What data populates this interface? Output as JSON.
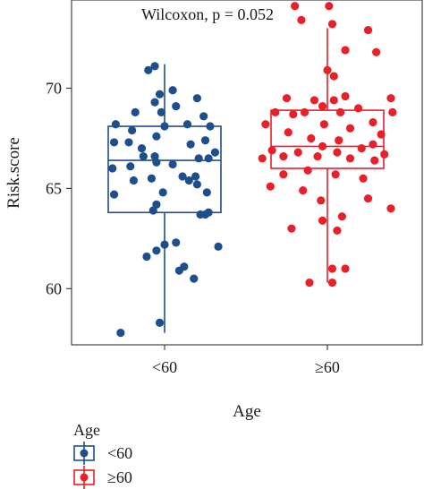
{
  "chart_data": {
    "type": "box",
    "title": "",
    "annotation": "Wilcoxon, p = 0.052",
    "xlabel": "Age",
    "ylabel": "Risk.score",
    "categories": [
      "<60",
      "≥60"
    ],
    "ylim": [
      57.2,
      74.4
    ],
    "yticks": [
      60,
      65,
      70
    ],
    "grid": false,
    "legend": {
      "title": "Age",
      "position": "bottom-left"
    },
    "series": [
      {
        "name": "<60",
        "color": "#1f4e8c",
        "box": {
          "min": 57.8,
          "q1": 63.8,
          "median": 66.4,
          "q3": 68.1,
          "max": 71.2
        },
        "points": [
          {
            "jitter": -0.06,
            "y": 71.1
          },
          {
            "jitter": -0.1,
            "y": 70.9
          },
          {
            "jitter": 0.05,
            "y": 69.9
          },
          {
            "jitter": -0.03,
            "y": 69.7
          },
          {
            "jitter": 0.2,
            "y": 69.5
          },
          {
            "jitter": -0.06,
            "y": 69.3
          },
          {
            "jitter": 0.07,
            "y": 69.1
          },
          {
            "jitter": -0.18,
            "y": 68.8
          },
          {
            "jitter": -0.02,
            "y": 68.8
          },
          {
            "jitter": 0.24,
            "y": 68.6
          },
          {
            "jitter": -0.3,
            "y": 68.2
          },
          {
            "jitter": 0.0,
            "y": 68.1
          },
          {
            "jitter": 0.14,
            "y": 68.2
          },
          {
            "jitter": 0.28,
            "y": 68.1
          },
          {
            "jitter": -0.2,
            "y": 67.9
          },
          {
            "jitter": -0.05,
            "y": 67.6
          },
          {
            "jitter": 0.25,
            "y": 67.4
          },
          {
            "jitter": -0.31,
            "y": 67.3
          },
          {
            "jitter": -0.22,
            "y": 67.3
          },
          {
            "jitter": 0.16,
            "y": 67.2
          },
          {
            "jitter": -0.14,
            "y": 67.0
          },
          {
            "jitter": 0.31,
            "y": 66.8
          },
          {
            "jitter": -0.13,
            "y": 66.6
          },
          {
            "jitter": -0.06,
            "y": 66.6
          },
          {
            "jitter": 0.21,
            "y": 66.5
          },
          {
            "jitter": 0.27,
            "y": 66.5
          },
          {
            "jitter": -0.05,
            "y": 66.3
          },
          {
            "jitter": 0.05,
            "y": 66.2
          },
          {
            "jitter": -0.21,
            "y": 66.1
          },
          {
            "jitter": -0.32,
            "y": 66.0
          },
          {
            "jitter": 0.11,
            "y": 65.6
          },
          {
            "jitter": 0.19,
            "y": 65.6
          },
          {
            "jitter": -0.08,
            "y": 65.5
          },
          {
            "jitter": 0.15,
            "y": 65.4
          },
          {
            "jitter": -0.19,
            "y": 65.4
          },
          {
            "jitter": 0.2,
            "y": 65.2
          },
          {
            "jitter": -0.01,
            "y": 64.8
          },
          {
            "jitter": 0.26,
            "y": 64.8
          },
          {
            "jitter": -0.31,
            "y": 64.7
          },
          {
            "jitter": -0.05,
            "y": 64.2
          },
          {
            "jitter": -0.07,
            "y": 63.9
          },
          {
            "jitter": 0.22,
            "y": 63.7
          },
          {
            "jitter": 0.27,
            "y": 63.8
          },
          {
            "jitter": 0.25,
            "y": 63.7
          },
          {
            "jitter": 0.07,
            "y": 62.3
          },
          {
            "jitter": 0.0,
            "y": 62.2
          },
          {
            "jitter": 0.33,
            "y": 62.1
          },
          {
            "jitter": -0.05,
            "y": 61.9
          },
          {
            "jitter": -0.11,
            "y": 61.6
          },
          {
            "jitter": 0.12,
            "y": 61.1
          },
          {
            "jitter": 0.09,
            "y": 60.9
          },
          {
            "jitter": 0.18,
            "y": 60.5
          },
          {
            "jitter": -0.03,
            "y": 58.3
          },
          {
            "jitter": -0.27,
            "y": 57.8
          }
        ]
      },
      {
        "name": "≥60",
        "color": "#e8202a",
        "box": {
          "min": 60.3,
          "q1": 66.0,
          "median": 67.1,
          "q3": 68.9,
          "max": 73.0
        },
        "points": [
          {
            "jitter": -0.2,
            "y": 74.1
          },
          {
            "jitter": 0.01,
            "y": 74.1
          },
          {
            "jitter": -0.16,
            "y": 73.4
          },
          {
            "jitter": 0.03,
            "y": 73.2
          },
          {
            "jitter": 0.25,
            "y": 72.9
          },
          {
            "jitter": 0.11,
            "y": 71.9
          },
          {
            "jitter": 0.3,
            "y": 71.8
          },
          {
            "jitter": 0.0,
            "y": 70.9
          },
          {
            "jitter": 0.04,
            "y": 70.6
          },
          {
            "jitter": 0.11,
            "y": 69.6
          },
          {
            "jitter": -0.25,
            "y": 69.5
          },
          {
            "jitter": 0.39,
            "y": 69.5
          },
          {
            "jitter": -0.08,
            "y": 69.4
          },
          {
            "jitter": 0.04,
            "y": 69.4
          },
          {
            "jitter": -0.03,
            "y": 69.1
          },
          {
            "jitter": 0.19,
            "y": 69.0
          },
          {
            "jitter": -0.32,
            "y": 68.8
          },
          {
            "jitter": -0.14,
            "y": 68.8
          },
          {
            "jitter": 0.08,
            "y": 68.8
          },
          {
            "jitter": 0.4,
            "y": 68.8
          },
          {
            "jitter": -0.21,
            "y": 68.7
          },
          {
            "jitter": 0.28,
            "y": 68.3
          },
          {
            "jitter": -0.38,
            "y": 68.2
          },
          {
            "jitter": -0.02,
            "y": 68.2
          },
          {
            "jitter": 0.14,
            "y": 68.0
          },
          {
            "jitter": -0.24,
            "y": 67.8
          },
          {
            "jitter": 0.33,
            "y": 67.7
          },
          {
            "jitter": -0.1,
            "y": 67.5
          },
          {
            "jitter": 0.07,
            "y": 67.4
          },
          {
            "jitter": 0.28,
            "y": 67.2
          },
          {
            "jitter": -0.03,
            "y": 67.1
          },
          {
            "jitter": 0.21,
            "y": 67.0
          },
          {
            "jitter": -0.34,
            "y": 66.9
          },
          {
            "jitter": -0.18,
            "y": 66.8
          },
          {
            "jitter": 0.06,
            "y": 66.8
          },
          {
            "jitter": 0.35,
            "y": 66.7
          },
          {
            "jitter": -0.27,
            "y": 66.6
          },
          {
            "jitter": -0.06,
            "y": 66.6
          },
          {
            "jitter": -0.4,
            "y": 66.5
          },
          {
            "jitter": 0.14,
            "y": 66.5
          },
          {
            "jitter": 0.29,
            "y": 66.4
          },
          {
            "jitter": -0.12,
            "y": 65.9
          },
          {
            "jitter": 0.05,
            "y": 65.7
          },
          {
            "jitter": -0.27,
            "y": 65.7
          },
          {
            "jitter": 0.22,
            "y": 65.5
          },
          {
            "jitter": -0.35,
            "y": 65.1
          },
          {
            "jitter": -0.15,
            "y": 64.9
          },
          {
            "jitter": 0.25,
            "y": 64.5
          },
          {
            "jitter": -0.04,
            "y": 64.4
          },
          {
            "jitter": 0.39,
            "y": 64.0
          },
          {
            "jitter": 0.09,
            "y": 63.6
          },
          {
            "jitter": -0.03,
            "y": 63.4
          },
          {
            "jitter": -0.22,
            "y": 63.0
          },
          {
            "jitter": 0.06,
            "y": 62.9
          },
          {
            "jitter": 0.03,
            "y": 61.0
          },
          {
            "jitter": 0.11,
            "y": 61.0
          },
          {
            "jitter": -0.11,
            "y": 60.3
          },
          {
            "jitter": 0.03,
            "y": 60.3
          }
        ]
      }
    ]
  }
}
